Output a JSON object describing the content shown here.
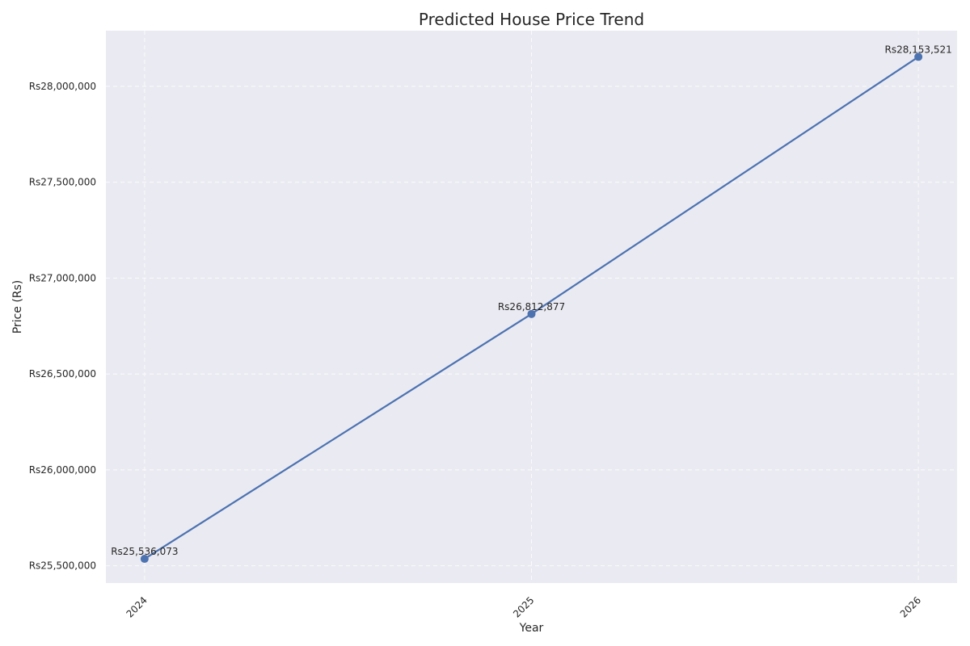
{
  "chart_data": {
    "type": "line",
    "title": "Predicted House Price Trend",
    "xlabel": "Year",
    "ylabel": "Price (Rs)",
    "x": [
      2024,
      2025,
      2026
    ],
    "x_tick_labels": [
      "2024",
      "2025",
      "2026"
    ],
    "y_ticks": [
      25500000,
      26000000,
      26500000,
      27000000,
      27500000,
      28000000
    ],
    "y_tick_labels": [
      "Rs25,500,000",
      "Rs26,000,000",
      "Rs26,500,000",
      "Rs27,000,000",
      "Rs27,500,000",
      "Rs28,000,000"
    ],
    "ylim": [
      25410000,
      28290000
    ],
    "xlim": [
      2023.9,
      2026.1
    ],
    "series": [
      {
        "values": [
          25536073,
          26812877,
          28153521
        ],
        "labels": [
          "Rs25,536,073",
          "Rs26,812,877",
          "Rs28,153,521"
        ],
        "color": "#4c72b0"
      }
    ],
    "grid": true,
    "background": "#eaeaf2"
  }
}
